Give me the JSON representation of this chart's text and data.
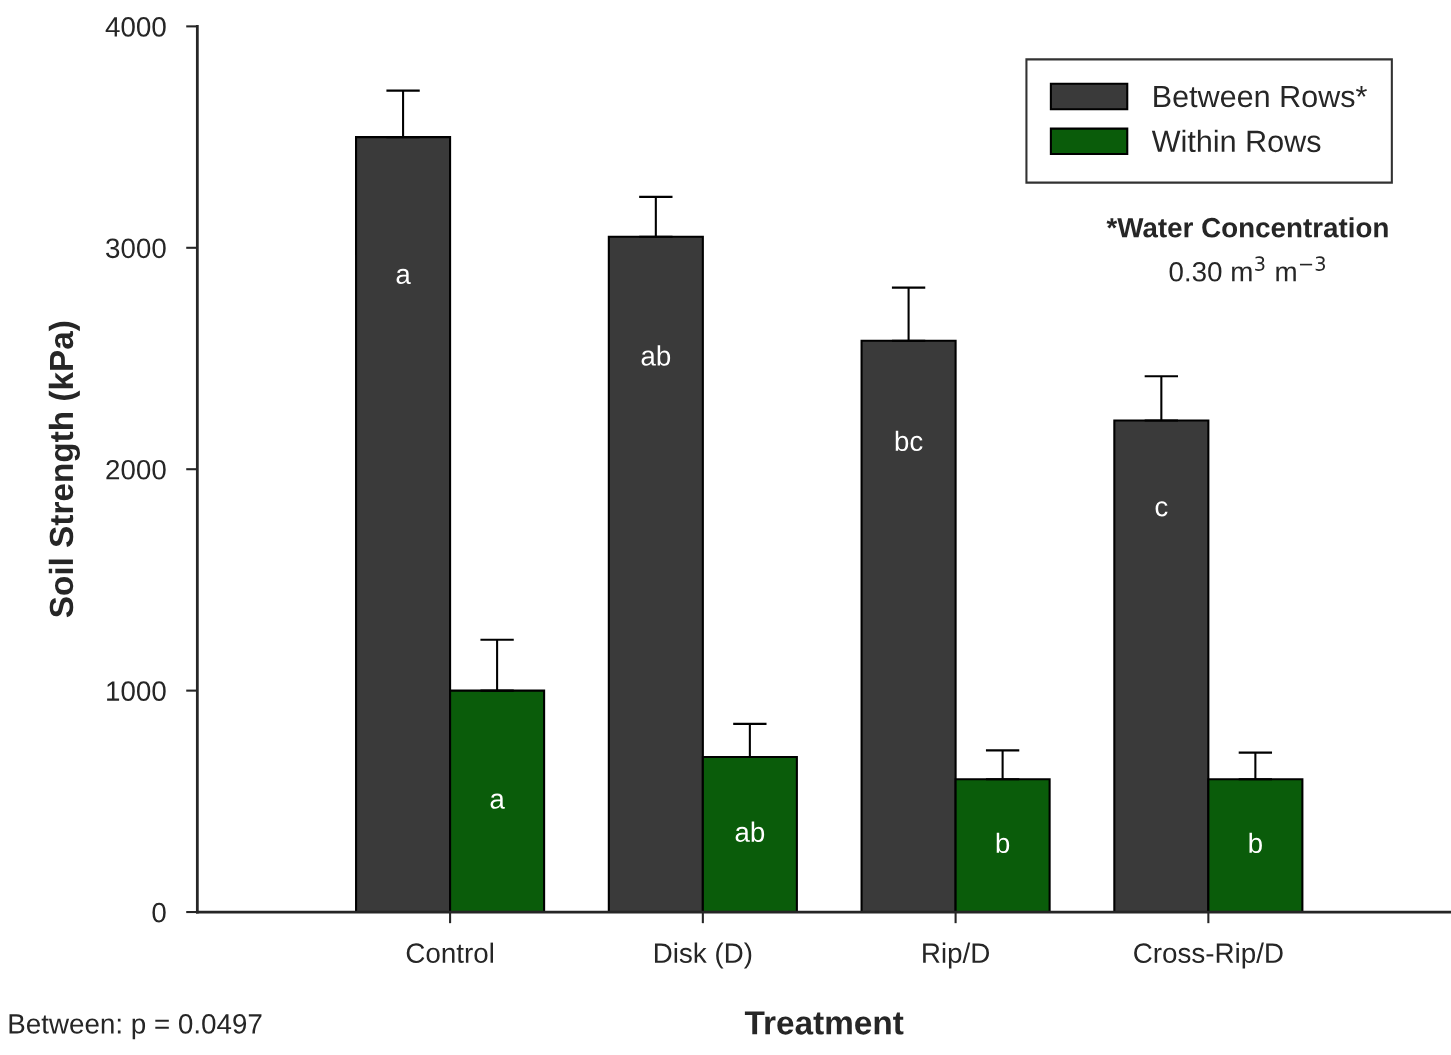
{
  "chart_data": {
    "type": "bar",
    "xlabel": "Treatment",
    "ylabel": "Soil Strength (kPa)",
    "categories": [
      "Control",
      "Disk (D)",
      "Rip/D",
      "Cross-Rip/D"
    ],
    "series": [
      {
        "name": "Between Rows*",
        "color": "#3a3a3a",
        "values": [
          3500,
          3050,
          2580,
          2220
        ],
        "errors": [
          [
            3500,
            3710
          ],
          [
            3050,
            3230
          ],
          [
            2580,
            2820
          ],
          [
            2220,
            2420
          ]
        ],
        "value_labels": [
          "a",
          "ab",
          "bc",
          "c"
        ]
      },
      {
        "name": "Within Rows",
        "color": "#0a5c0a",
        "values": [
          1000,
          700,
          600,
          600
        ],
        "errors": [
          [
            1000,
            1230
          ],
          [
            700,
            850
          ],
          [
            600,
            730
          ],
          [
            600,
            720
          ]
        ],
        "value_labels": [
          "a",
          "ab",
          "b",
          "b"
        ]
      }
    ],
    "ylim": [
      0,
      4000
    ],
    "yticks": [
      0,
      1000,
      2000,
      3000,
      4000
    ],
    "grid": false,
    "legend": "top right",
    "annotations": [
      "*Water Concentration",
      "0.30 m$^{3}$ m$^{−3}$",
      "Between: p = 0.0497"
    ]
  }
}
